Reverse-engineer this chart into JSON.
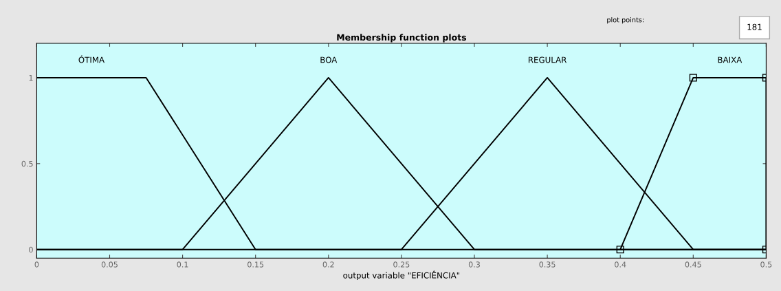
{
  "chart_data": {
    "type": "line",
    "title": "Membership function plots",
    "xlabel": "output variable \"EFICIÊNCIA\"",
    "annotations": [
      "plot points:",
      "181"
    ],
    "series": [
      {
        "name": "ÓTIMA",
        "color": "#000000",
        "x": [
          0,
          0.075,
          0.15,
          0.5
        ],
        "values": [
          1,
          1,
          0,
          0
        ]
      },
      {
        "name": "BOA",
        "color": "#000000",
        "x": [
          0,
          0.1,
          0.2,
          0.3,
          0.5
        ],
        "values": [
          0,
          0,
          1,
          0,
          0
        ]
      },
      {
        "name": "REGULAR",
        "color": "#000000",
        "x": [
          0,
          0.25,
          0.35,
          0.45,
          0.5
        ],
        "values": [
          0,
          0,
          1,
          0,
          0
        ]
      },
      {
        "name": "BAIXA",
        "color": "#000000",
        "x": [
          0.4,
          0.45,
          0.5,
          0.5
        ],
        "values": [
          0,
          1,
          1,
          0
        ],
        "marker": "square"
      }
    ],
    "xlim": [
      0,
      0.5
    ],
    "xticks": [
      0,
      0.05,
      0.1,
      0.15,
      0.2,
      0.25,
      0.3,
      0.35,
      0.4,
      0.45,
      0.5
    ],
    "ylim": [
      -0.05,
      1.2
    ],
    "yticks": [
      0,
      0.5,
      1
    ],
    "grid": false,
    "legend": false,
    "line_style": "solid"
  }
}
